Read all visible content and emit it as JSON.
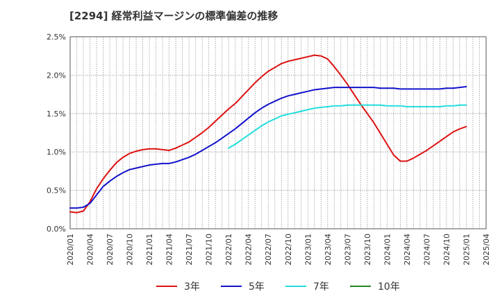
{
  "chart_data": {
    "type": "line",
    "title": "[2294]  経常利益マージンの標準偏差の推移",
    "xlabel": "",
    "ylabel": "",
    "ylim": [
      0,
      2.5
    ],
    "yticks": [
      "0.0%",
      "0.5%",
      "1.0%",
      "1.5%",
      "2.0%",
      "2.5%"
    ],
    "xticks": [
      "2020/01",
      "2020/04",
      "2020/07",
      "2020/10",
      "2021/01",
      "2021/04",
      "2021/07",
      "2021/10",
      "2022/01",
      "2022/04",
      "2022/07",
      "2022/10",
      "2023/01",
      "2023/04",
      "2023/07",
      "2023/10",
      "2024/01",
      "2024/04",
      "2024/07",
      "2024/10",
      "2025/01",
      "2025/04"
    ],
    "x_unit": "month",
    "x_start": "2020/01",
    "grid": true,
    "legend_position": "bottom",
    "series": [
      {
        "name": "3年",
        "color": "#dd1111",
        "start": "2020/01",
        "values": [
          0.22,
          0.21,
          0.23,
          0.35,
          0.52,
          0.65,
          0.76,
          0.86,
          0.93,
          0.98,
          1.01,
          1.03,
          1.04,
          1.04,
          1.03,
          1.02,
          1.05,
          1.09,
          1.13,
          1.19,
          1.25,
          1.32,
          1.4,
          1.48,
          1.56,
          1.63,
          1.72,
          1.81,
          1.9,
          1.98,
          2.05,
          2.1,
          2.15,
          2.18,
          2.2,
          2.22,
          2.24,
          2.26,
          2.25,
          2.21,
          2.11,
          2.0,
          1.88,
          1.75,
          1.62,
          1.5,
          1.38,
          1.24,
          1.1,
          0.96,
          0.88,
          0.88,
          0.92,
          0.97,
          1.02,
          1.08,
          1.14,
          1.2,
          1.26,
          1.3,
          1.33
        ]
      },
      {
        "name": "5年",
        "color": "#1111cc",
        "start": "2020/01",
        "values": [
          0.27,
          0.27,
          0.28,
          0.33,
          0.44,
          0.55,
          0.62,
          0.68,
          0.73,
          0.77,
          0.79,
          0.81,
          0.83,
          0.84,
          0.85,
          0.85,
          0.87,
          0.9,
          0.93,
          0.97,
          1.02,
          1.07,
          1.12,
          1.18,
          1.24,
          1.3,
          1.37,
          1.44,
          1.51,
          1.57,
          1.62,
          1.66,
          1.7,
          1.73,
          1.75,
          1.77,
          1.79,
          1.81,
          1.82,
          1.83,
          1.84,
          1.84,
          1.84,
          1.84,
          1.84,
          1.84,
          1.84,
          1.83,
          1.83,
          1.83,
          1.82,
          1.82,
          1.82,
          1.82,
          1.82,
          1.82,
          1.82,
          1.83,
          1.83,
          1.84,
          1.85
        ]
      },
      {
        "name": "7年",
        "color": "#22dddd",
        "start": "2022/01",
        "values": [
          1.05,
          1.1,
          1.16,
          1.22,
          1.28,
          1.34,
          1.39,
          1.43,
          1.47,
          1.49,
          1.51,
          1.53,
          1.55,
          1.57,
          1.58,
          1.59,
          1.6,
          1.6,
          1.61,
          1.61,
          1.61,
          1.61,
          1.61,
          1.61,
          1.6,
          1.6,
          1.6,
          1.59,
          1.59,
          1.59,
          1.59,
          1.59,
          1.59,
          1.6,
          1.6,
          1.61,
          1.61
        ]
      },
      {
        "name": "10年",
        "color": "#228822",
        "start": "2025/01",
        "values": []
      }
    ]
  }
}
